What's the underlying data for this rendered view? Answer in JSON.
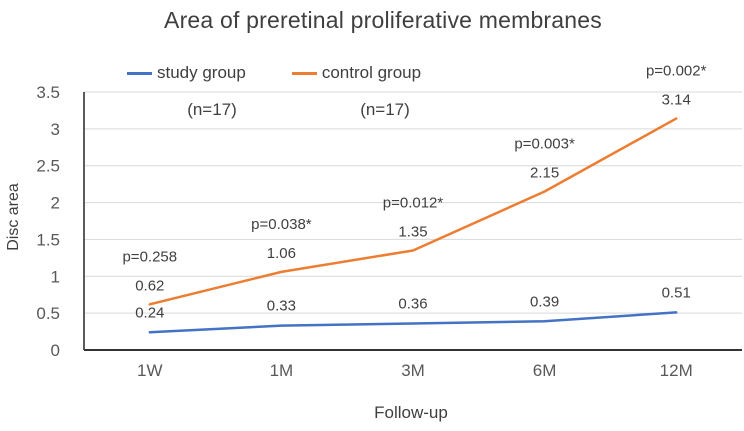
{
  "chart_data": {
    "type": "line",
    "title": "Area of preretinal proliferative membranes",
    "xlabel": "Follow-up",
    "ylabel": "Disc area",
    "categories": [
      "1W",
      "1M",
      "3M",
      "6M",
      "12M"
    ],
    "series": [
      {
        "name": "study group",
        "color": "#4472C4",
        "values": [
          0.24,
          0.33,
          0.36,
          0.39,
          0.51
        ],
        "labels": [
          "0.24",
          "0.33",
          "0.36",
          "0.39",
          "0.51"
        ]
      },
      {
        "name": "control group",
        "color": "#ED7D31",
        "values": [
          0.62,
          1.06,
          1.35,
          2.15,
          3.14
        ],
        "labels": [
          "0.62",
          "1.06",
          "1.35",
          "2.15",
          "3.14"
        ]
      }
    ],
    "p_values": [
      "p=0.258",
      "p=0.038*",
      "p=0.012*",
      "p=0.003*",
      "p=0.002*"
    ],
    "annotations": [
      "(n=17)",
      "(n=17)"
    ],
    "y_ticks": [
      {
        "v": 0,
        "label": "0"
      },
      {
        "v": 0.5,
        "label": "0.5"
      },
      {
        "v": 1,
        "label": "1"
      },
      {
        "v": 1.5,
        "label": "1.5"
      },
      {
        "v": 2,
        "label": "2"
      },
      {
        "v": 2.5,
        "label": "2.5"
      },
      {
        "v": 3,
        "label": "3"
      },
      {
        "v": 3.5,
        "label": "3.5"
      }
    ],
    "ylim": [
      0,
      3.5
    ],
    "grid": true,
    "legend_position": "top",
    "colors": {
      "gridline": "#d9d9d9",
      "axis": "#333333",
      "tick_text": "#595959",
      "label_text": "#404040"
    }
  }
}
